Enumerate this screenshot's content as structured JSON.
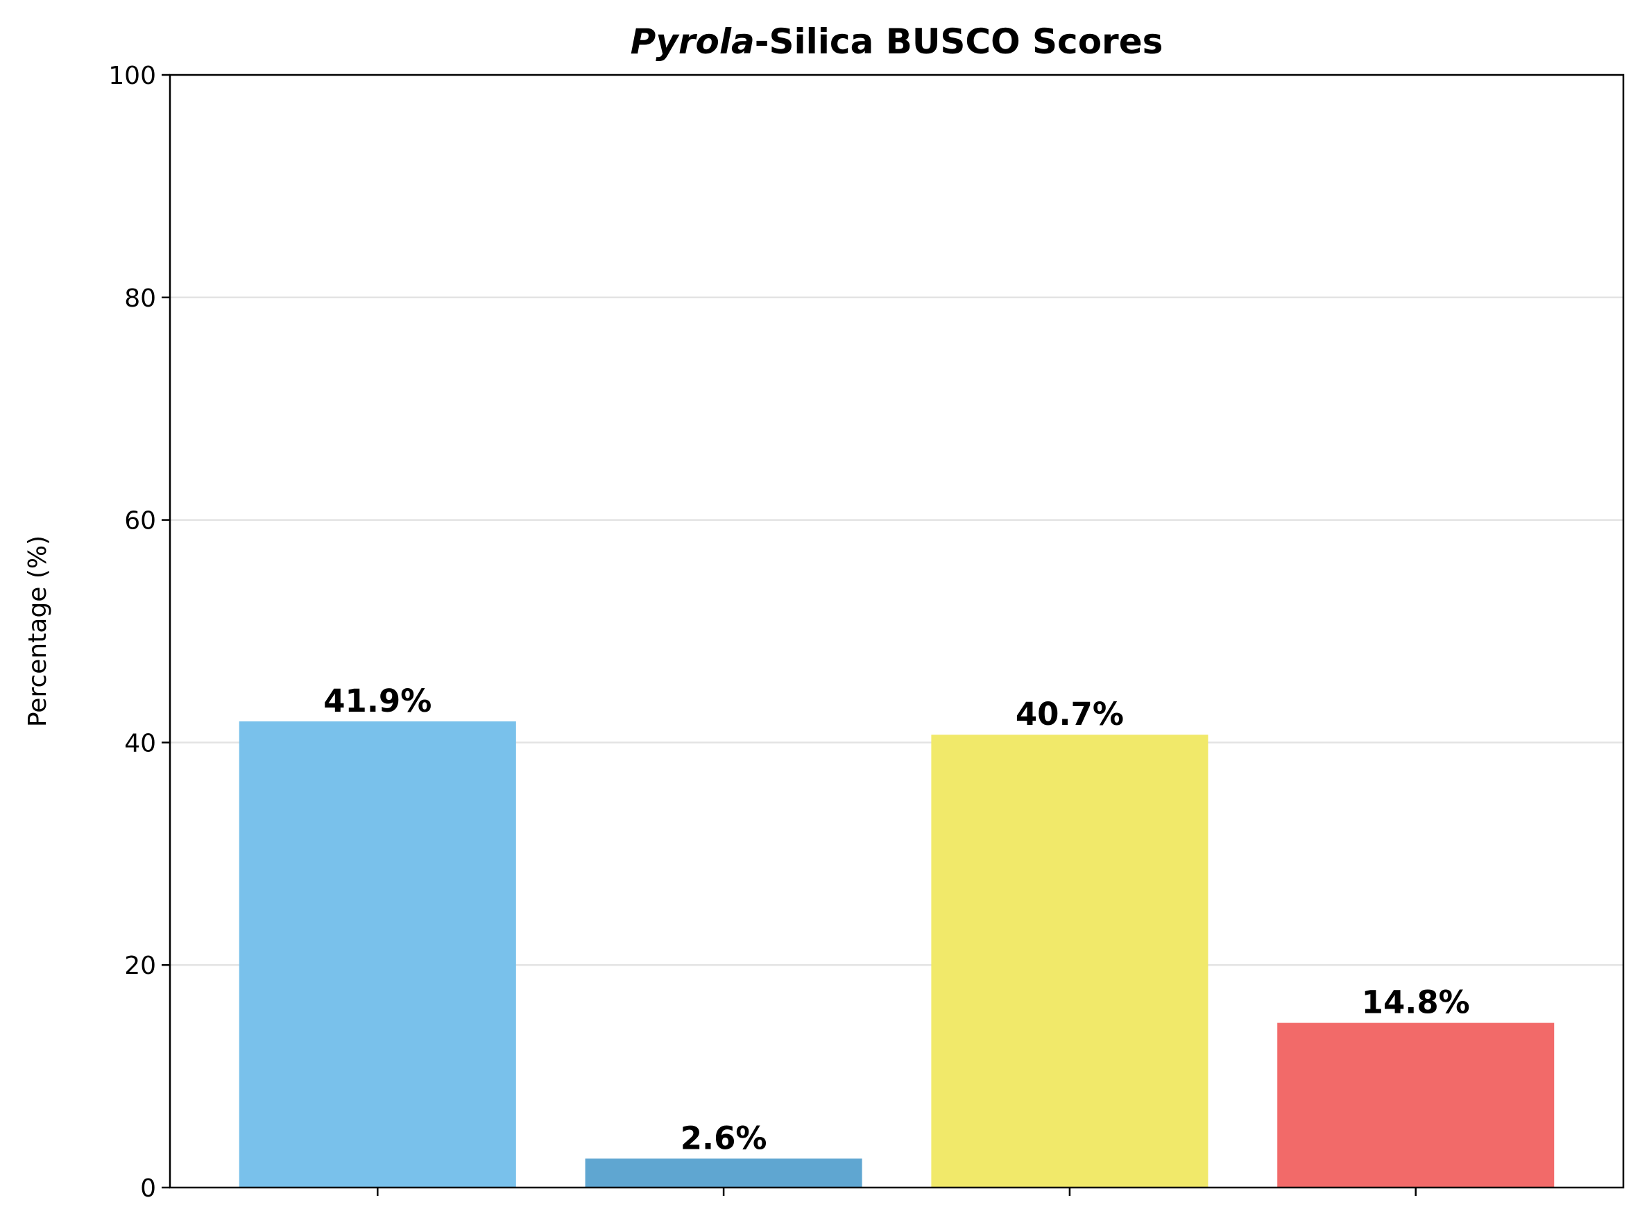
{
  "chart_data": {
    "type": "bar",
    "title_italic": "Pyrola",
    "title_rest": "-Silica BUSCO Scores",
    "xlabel": "",
    "ylabel": "Percentage (%)",
    "ylim": [
      0,
      100
    ],
    "yticks": [
      0,
      20,
      40,
      60,
      80,
      100
    ],
    "grid": "horizontal",
    "categories": [
      "",
      "",
      "",
      ""
    ],
    "values": [
      41.9,
      2.6,
      40.7,
      14.8
    ],
    "value_labels": [
      "41.9%",
      "2.6%",
      "40.7%",
      "14.8%"
    ],
    "colors": [
      "#79c1eb",
      "#5fa6d1",
      "#f1e96a",
      "#f26a69"
    ]
  }
}
